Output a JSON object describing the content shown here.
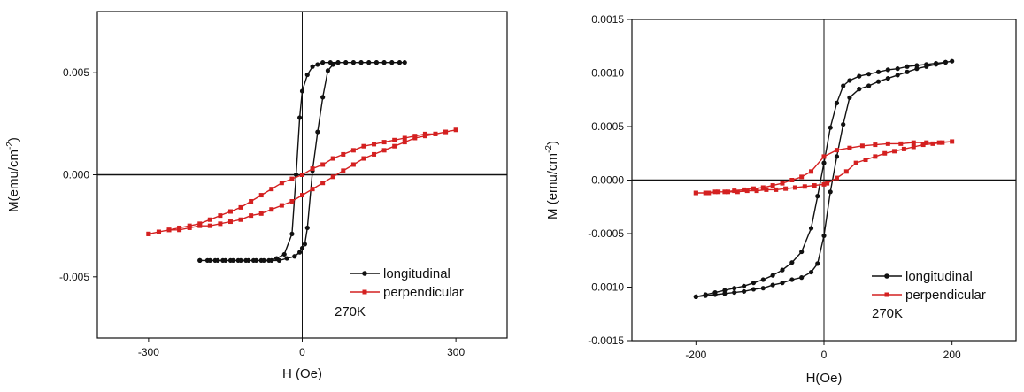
{
  "colors": {
    "longitudinal": "#111111",
    "perpendicular": "#d42020"
  },
  "chart_data": [
    {
      "type": "line",
      "xlabel": "H (Oe)",
      "ylabel": "M(emu/cm",
      "ylabel_sup": "-2",
      "ylabel_end": ")",
      "xlim": [
        -400,
        400
      ],
      "ylim": [
        -0.008,
        0.008
      ],
      "xticks": [
        -300,
        0,
        300
      ],
      "xtick_labels": [
        "-300",
        "0",
        "300"
      ],
      "yticks": [
        -0.005,
        0,
        0.005
      ],
      "ytick_labels": [
        "-0.005",
        "0.000",
        "0.005"
      ],
      "annotation": "270K",
      "legend": [
        "longitudinal",
        "perpendicular"
      ],
      "legend_position": "bottom-right",
      "series": [
        {
          "name": "longitudinal",
          "marker": "circle",
          "color": "#111111",
          "x": [
            -200,
            -185,
            -170,
            -155,
            -140,
            -125,
            -110,
            -95,
            -80,
            -65,
            -50,
            -35,
            -20,
            -12,
            -5,
            0,
            10,
            20,
            30,
            40,
            55,
            70,
            85,
            100,
            115,
            130,
            145,
            160,
            175,
            190,
            200,
            190,
            175,
            160,
            145,
            130,
            115,
            100,
            85,
            70,
            60,
            50,
            40,
            30,
            20,
            10,
            5,
            0,
            -5,
            -15,
            -30,
            -45,
            -60,
            -75,
            -90,
            -105,
            -120,
            -135,
            -150,
            -165,
            -180,
            -200
          ],
          "y": [
            -0.0042,
            -0.0042,
            -0.0042,
            -0.0042,
            -0.0042,
            -0.0042,
            -0.0042,
            -0.0042,
            -0.0042,
            -0.0042,
            -0.0041,
            -0.0039,
            -0.0029,
            0.0,
            0.0028,
            0.0041,
            0.0049,
            0.0053,
            0.0054,
            0.0055,
            0.0055,
            0.0055,
            0.0055,
            0.0055,
            0.0055,
            0.0055,
            0.0055,
            0.0055,
            0.0055,
            0.0055,
            0.0055,
            0.0055,
            0.0055,
            0.0055,
            0.0055,
            0.0055,
            0.0055,
            0.0055,
            0.0055,
            0.0055,
            0.0054,
            0.0051,
            0.0038,
            0.0021,
            0.0002,
            -0.0026,
            -0.0034,
            -0.0036,
            -0.0038,
            -0.004,
            -0.0041,
            -0.0042,
            -0.0042,
            -0.0042,
            -0.0042,
            -0.0042,
            -0.0042,
            -0.0042,
            -0.0042,
            -0.0042,
            -0.0042,
            -0.0042
          ]
        },
        {
          "name": "perpendicular",
          "marker": "square",
          "color": "#d42020",
          "x": [
            -300,
            -280,
            -260,
            -240,
            -220,
            -200,
            -180,
            -160,
            -140,
            -120,
            -100,
            -80,
            -60,
            -40,
            -20,
            0,
            20,
            40,
            60,
            80,
            100,
            120,
            140,
            160,
            180,
            200,
            220,
            240,
            260,
            280,
            300,
            280,
            260,
            240,
            220,
            200,
            180,
            160,
            140,
            120,
            100,
            80,
            60,
            40,
            20,
            0,
            -20,
            -40,
            -60,
            -80,
            -100,
            -120,
            -140,
            -160,
            -180,
            -200,
            -220,
            -240,
            -260,
            -280,
            -300
          ],
          "y": [
            -0.0029,
            -0.0028,
            -0.0027,
            -0.0026,
            -0.0025,
            -0.0024,
            -0.0022,
            -0.002,
            -0.0018,
            -0.0016,
            -0.0013,
            -0.001,
            -0.0007,
            -0.0004,
            -0.0002,
            0.0,
            0.0003,
            0.0005,
            0.0008,
            0.001,
            0.0012,
            0.0014,
            0.0015,
            0.0016,
            0.0017,
            0.0018,
            0.0019,
            0.002,
            0.002,
            0.0021,
            0.0022,
            0.0021,
            0.002,
            0.0019,
            0.0018,
            0.0016,
            0.0014,
            0.0012,
            0.001,
            0.0008,
            0.0005,
            0.0002,
            -0.0001,
            -0.0004,
            -0.0007,
            -0.001,
            -0.0013,
            -0.0015,
            -0.0017,
            -0.0019,
            -0.002,
            -0.0022,
            -0.0023,
            -0.0024,
            -0.0025,
            -0.0025,
            -0.0026,
            -0.0027,
            -0.0027,
            -0.0028,
            -0.0029
          ]
        }
      ]
    },
    {
      "type": "line",
      "xlabel": "H(Oe)",
      "ylabel": "M (emu/cm",
      "ylabel_sup": "-2",
      "ylabel_end": ")",
      "xlim": [
        -300,
        300
      ],
      "ylim": [
        -0.0015,
        0.0015
      ],
      "xticks": [
        -200,
        0,
        200
      ],
      "xtick_labels": [
        "-200",
        "0",
        "200"
      ],
      "yticks": [
        -0.0015,
        -0.001,
        -0.0005,
        0,
        0.0005,
        0.001,
        0.0015
      ],
      "ytick_labels": [
        "-0.0015",
        "-0.0010",
        "-0.0005",
        "0.0000",
        "0.0005",
        "0.0010",
        "0.0015"
      ],
      "annotation": "270K",
      "legend": [
        "longitudinal",
        "perpendicular"
      ],
      "legend_position": "bottom-right",
      "series": [
        {
          "name": "longitudinal",
          "marker": "circle",
          "color": "#111111",
          "x": [
            -200,
            -185,
            -170,
            -155,
            -140,
            -125,
            -110,
            -95,
            -80,
            -65,
            -50,
            -35,
            -20,
            -10,
            0,
            10,
            20,
            30,
            40,
            55,
            70,
            85,
            100,
            115,
            130,
            145,
            160,
            175,
            190,
            200,
            190,
            175,
            160,
            145,
            130,
            115,
            100,
            85,
            70,
            55,
            40,
            30,
            20,
            10,
            0,
            -10,
            -20,
            -35,
            -50,
            -65,
            -80,
            -95,
            -110,
            -125,
            -140,
            -155,
            -170,
            -185,
            -200
          ],
          "y": [
            -0.00109,
            -0.00107,
            -0.00105,
            -0.00103,
            -0.00101,
            -0.00099,
            -0.00096,
            -0.00093,
            -0.00089,
            -0.00084,
            -0.00077,
            -0.00067,
            -0.00045,
            -0.00015,
            0.00016,
            0.00049,
            0.00072,
            0.00088,
            0.00093,
            0.00097,
            0.00099,
            0.00101,
            0.00103,
            0.00104,
            0.00106,
            0.00107,
            0.00108,
            0.00109,
            0.0011,
            0.00111,
            0.0011,
            0.00108,
            0.00106,
            0.00104,
            0.00101,
            0.00098,
            0.00095,
            0.00092,
            0.00088,
            0.00085,
            0.00077,
            0.00052,
            0.00022,
            -0.00011,
            -0.00052,
            -0.00078,
            -0.00086,
            -0.00091,
            -0.00093,
            -0.00096,
            -0.00098,
            -0.00101,
            -0.00102,
            -0.00104,
            -0.00105,
            -0.00106,
            -0.00107,
            -0.00108,
            -0.00109
          ]
        },
        {
          "name": "perpendicular",
          "marker": "square",
          "color": "#d42020",
          "x": [
            -200,
            -185,
            -170,
            -155,
            -140,
            -125,
            -110,
            -95,
            -80,
            -65,
            -50,
            -35,
            -20,
            0,
            20,
            40,
            60,
            80,
            100,
            120,
            140,
            160,
            180,
            200,
            185,
            170,
            155,
            140,
            125,
            110,
            95,
            80,
            65,
            50,
            35,
            20,
            5,
            0,
            -15,
            -30,
            -45,
            -60,
            -75,
            -90,
            -105,
            -120,
            -135,
            -150,
            -165,
            -180,
            -200
          ],
          "y": [
            -0.00012,
            -0.00012,
            -0.00011,
            -0.00011,
            -0.0001,
            -9e-05,
            -8e-05,
            -7e-05,
            -5e-05,
            -3e-05,
            0.0,
            3e-05,
            8e-05,
            0.00022,
            0.00028,
            0.0003,
            0.00032,
            0.00033,
            0.00034,
            0.00034,
            0.00035,
            0.00035,
            0.00035,
            0.00036,
            0.00035,
            0.00034,
            0.00033,
            0.00031,
            0.00029,
            0.00027,
            0.00025,
            0.00022,
            0.00019,
            0.00016,
            8e-05,
            2e-05,
            -3e-05,
            -4e-05,
            -5e-05,
            -6e-05,
            -7e-05,
            -8e-05,
            -9e-05,
            -9e-05,
            -0.0001,
            -0.0001,
            -0.00011,
            -0.00011,
            -0.00011,
            -0.00012,
            -0.00012
          ]
        }
      ]
    }
  ]
}
